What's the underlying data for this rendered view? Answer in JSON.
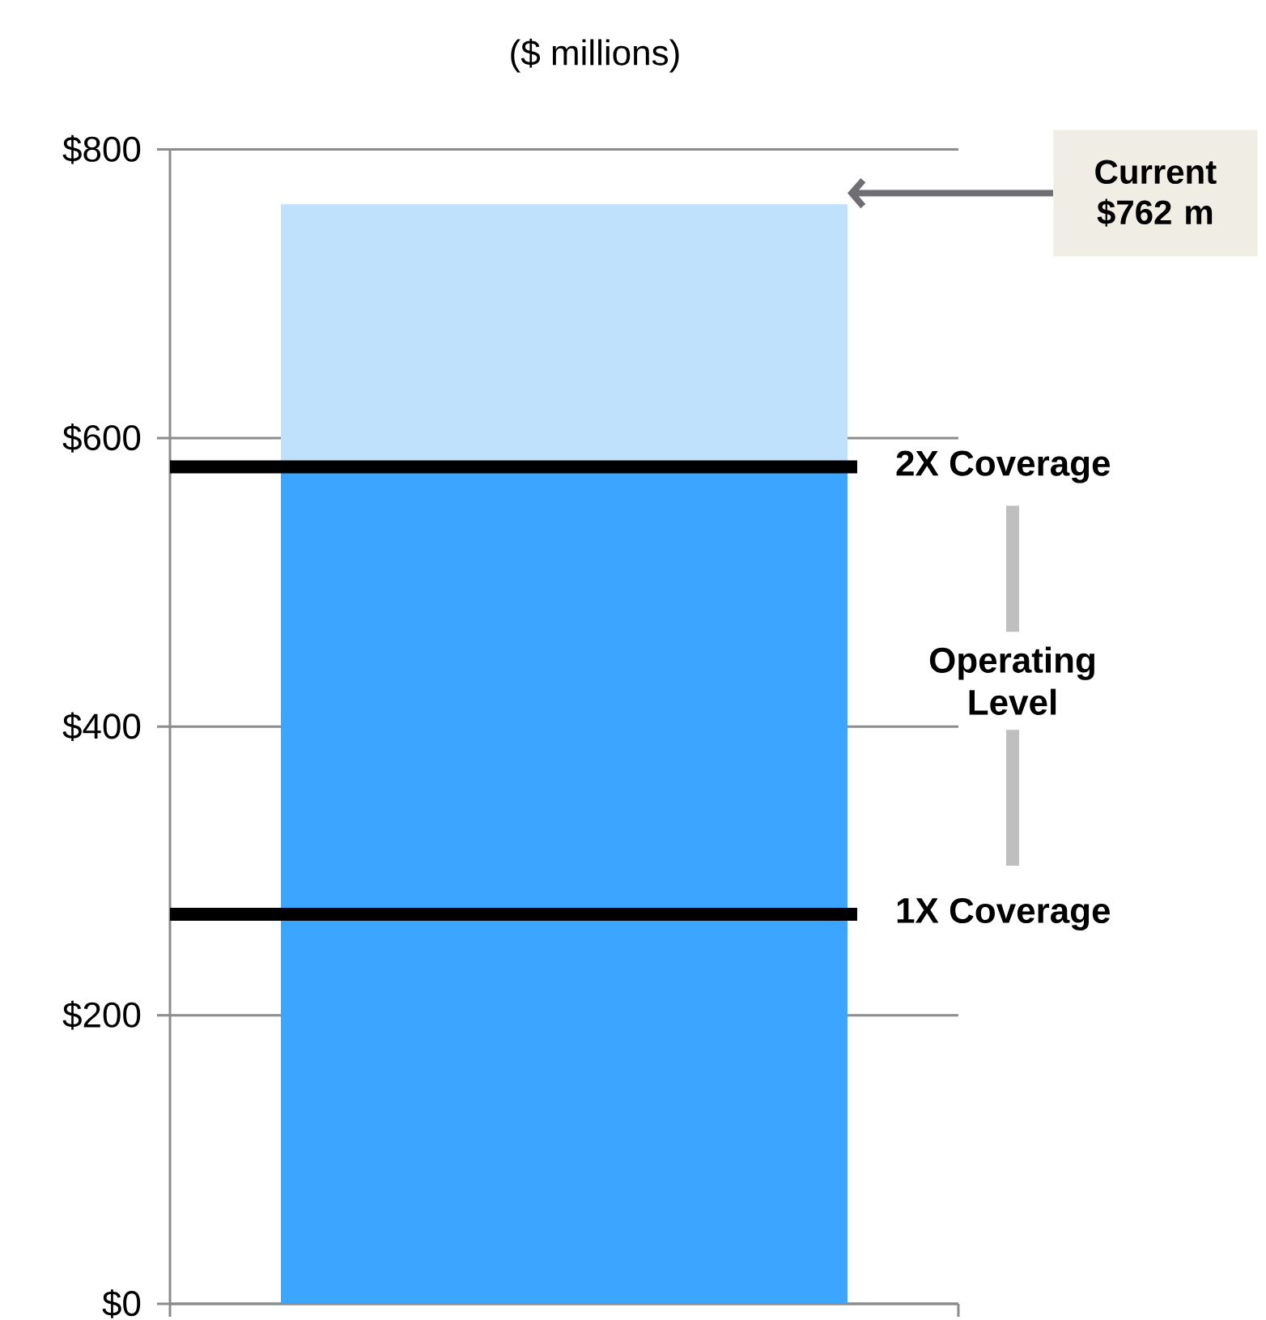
{
  "chart_data": {
    "type": "bar",
    "title": "($ millions)",
    "categories": [
      null
    ],
    "stacked": true,
    "series": [
      {
        "color": "#3ba5ff",
        "values": [
          580
        ]
      },
      {
        "color": "#bfe1fc",
        "values": [
          182
        ]
      }
    ],
    "ylim": [
      0,
      800
    ],
    "yticks": [
      {
        "value": 0,
        "label": "$0"
      },
      {
        "value": 200,
        "label": "$200"
      },
      {
        "value": 400,
        "label": "$400"
      },
      {
        "value": 600,
        "label": "$600"
      },
      {
        "value": 800,
        "label": "$800"
      }
    ],
    "grid": "y",
    "ref_lines": [
      {
        "axis": "y",
        "value": 580,
        "label": "2X Coverage",
        "color": "#000000"
      },
      {
        "axis": "y",
        "value": 270,
        "label": "1X Coverage",
        "color": "#000000"
      }
    ],
    "annotations": [
      "Current $762 m",
      "Operating Level"
    ]
  }
}
